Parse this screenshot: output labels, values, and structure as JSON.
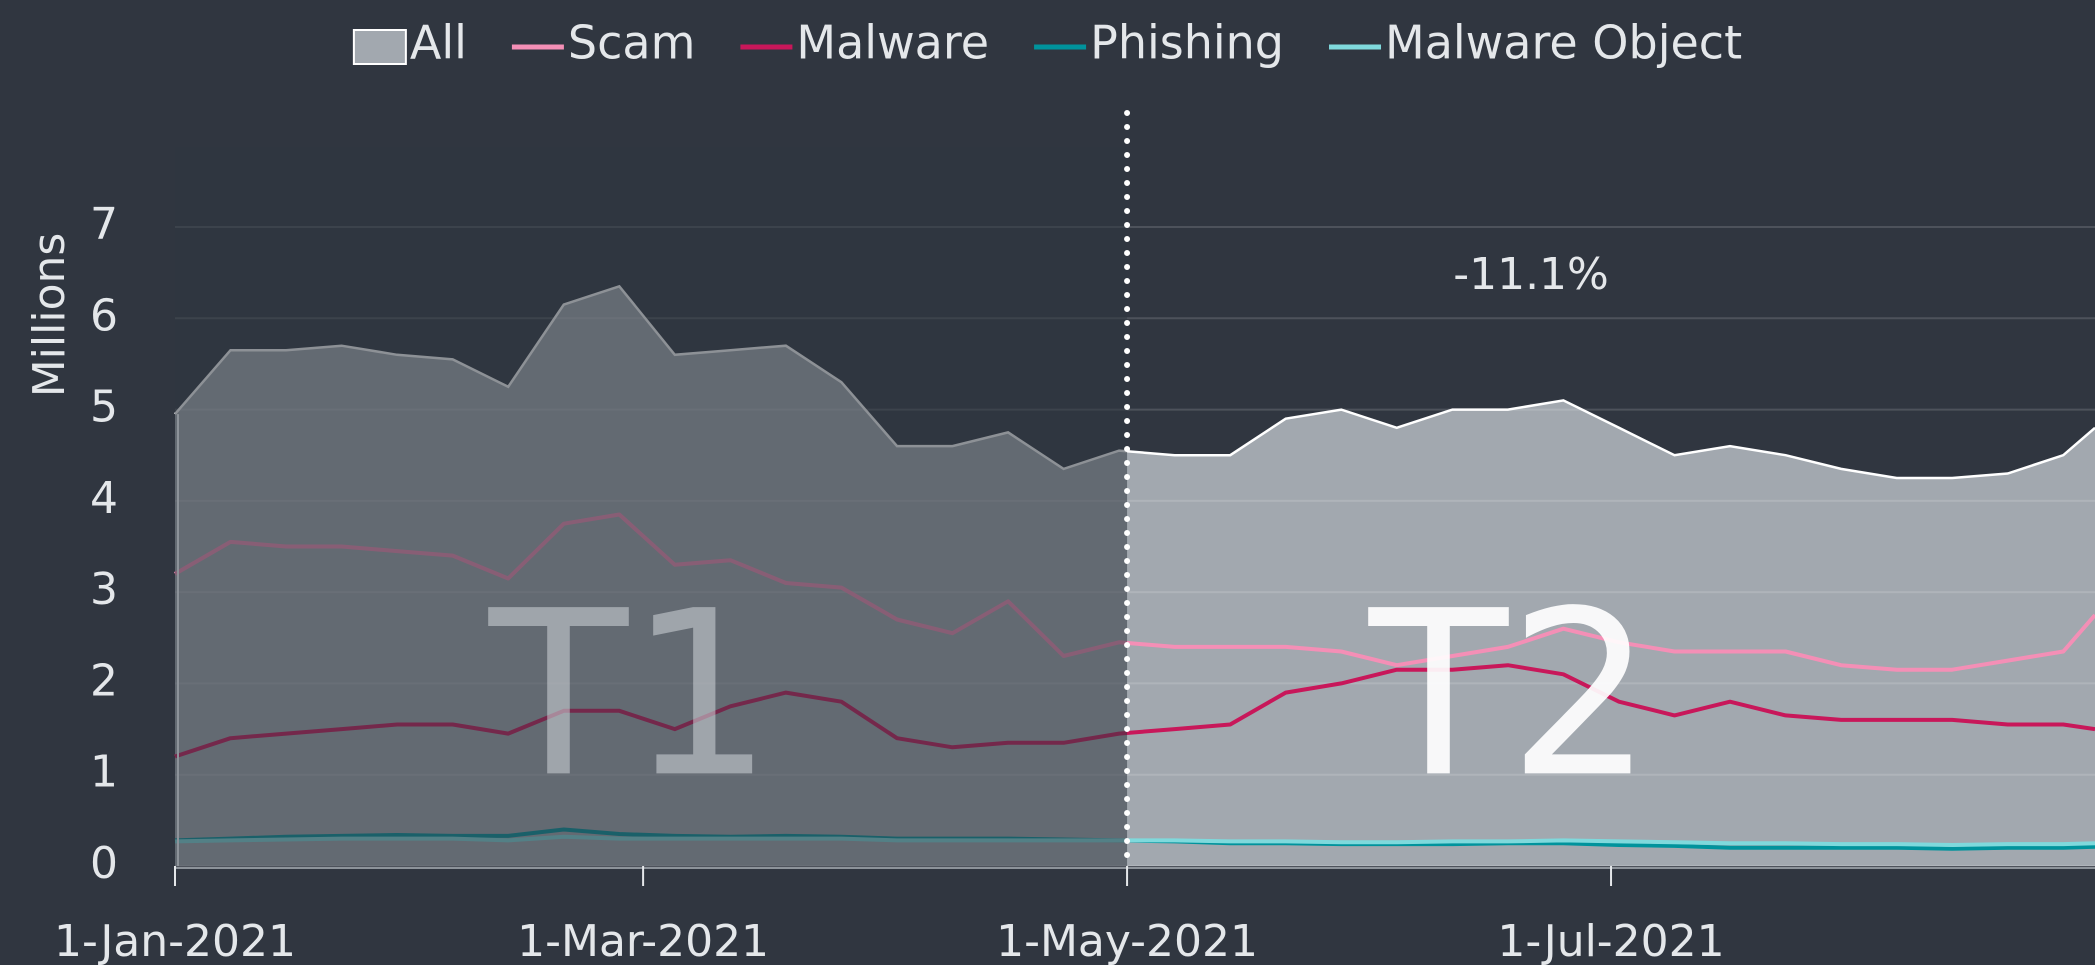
{
  "chart_data": {
    "type": "line",
    "y_label": "Millions",
    "legend": "top",
    "grid": true,
    "x": [
      "2021-01-01",
      "2021-01-08",
      "2021-01-15",
      "2021-01-22",
      "2021-01-29",
      "2021-02-05",
      "2021-02-12",
      "2021-02-19",
      "2021-02-26",
      "2021-03-05",
      "2021-03-12",
      "2021-03-19",
      "2021-03-26",
      "2021-04-02",
      "2021-04-09",
      "2021-04-16",
      "2021-04-23",
      "2021-04-30",
      "2021-05-07",
      "2021-05-14",
      "2021-05-21",
      "2021-05-28",
      "2021-06-04",
      "2021-06-11",
      "2021-06-18",
      "2021-06-25",
      "2021-07-02",
      "2021-07-09",
      "2021-07-16",
      "2021-07-23",
      "2021-07-30",
      "2021-08-06",
      "2021-08-13",
      "2021-08-20",
      "2021-08-27",
      "2021-08-31"
    ],
    "xlim": [
      "2021-01-01",
      "2021-08-31"
    ],
    "xticks": [
      {
        "value": "2021-01-01",
        "label": "1-Jan-2021"
      },
      {
        "value": "2021-03-01",
        "label": "1-Mar-2021"
      },
      {
        "value": "2021-05-01",
        "label": "1-May-2021"
      },
      {
        "value": "2021-07-01",
        "label": "1-Jul-2021"
      }
    ],
    "ylim": [
      0,
      7
    ],
    "yticks": [
      0,
      1,
      2,
      3,
      4,
      5,
      6,
      7
    ],
    "divider": "2021-05-01",
    "periods": [
      {
        "label": "T1"
      },
      {
        "label": "T2",
        "change": "-11.1%"
      }
    ],
    "series": [
      {
        "name": "All",
        "kind": "area",
        "color": "#a2a8af",
        "values": [
          4.95,
          5.65,
          5.65,
          5.7,
          5.6,
          5.55,
          5.25,
          6.15,
          6.35,
          5.6,
          5.65,
          5.7,
          5.3,
          4.6,
          4.6,
          4.75,
          4.35,
          4.55,
          4.5,
          4.5,
          4.9,
          5.0,
          4.8,
          5.0,
          5.0,
          5.1,
          4.8,
          4.5,
          4.6,
          4.5,
          4.35,
          4.25,
          4.25,
          4.3,
          4.5,
          4.8
        ]
      },
      {
        "name": "Scam",
        "color": "#f48fb6",
        "values": [
          3.2,
          3.55,
          3.5,
          3.5,
          3.45,
          3.4,
          3.15,
          3.75,
          3.85,
          3.3,
          3.35,
          3.1,
          3.05,
          2.7,
          2.55,
          2.9,
          2.3,
          2.45,
          2.4,
          2.4,
          2.4,
          2.35,
          2.2,
          2.3,
          2.4,
          2.6,
          2.45,
          2.35,
          2.35,
          2.35,
          2.2,
          2.15,
          2.15,
          2.25,
          2.35,
          2.75
        ]
      },
      {
        "name": "Malware",
        "color": "#c8175a",
        "values": [
          1.2,
          1.4,
          1.45,
          1.5,
          1.55,
          1.55,
          1.45,
          1.7,
          1.7,
          1.5,
          1.75,
          1.9,
          1.8,
          1.4,
          1.3,
          1.35,
          1.35,
          1.45,
          1.5,
          1.55,
          1.9,
          2.0,
          2.15,
          2.15,
          2.2,
          2.1,
          1.8,
          1.65,
          1.8,
          1.65,
          1.6,
          1.6,
          1.6,
          1.55,
          1.55,
          1.5
        ]
      },
      {
        "name": "Phishing",
        "color": "#00939c",
        "values": [
          0.28,
          0.3,
          0.32,
          0.33,
          0.34,
          0.33,
          0.33,
          0.4,
          0.35,
          0.33,
          0.32,
          0.33,
          0.32,
          0.3,
          0.3,
          0.3,
          0.29,
          0.28,
          0.27,
          0.25,
          0.25,
          0.24,
          0.24,
          0.24,
          0.25,
          0.25,
          0.23,
          0.22,
          0.2,
          0.2,
          0.2,
          0.2,
          0.19,
          0.2,
          0.2,
          0.21
        ]
      },
      {
        "name": "Malware Object",
        "color": "#7fd9dc",
        "values": [
          0.27,
          0.28,
          0.29,
          0.3,
          0.3,
          0.3,
          0.28,
          0.32,
          0.3,
          0.3,
          0.3,
          0.3,
          0.3,
          0.28,
          0.28,
          0.28,
          0.28,
          0.28,
          0.28,
          0.27,
          0.27,
          0.26,
          0.26,
          0.27,
          0.27,
          0.28,
          0.27,
          0.26,
          0.25,
          0.25,
          0.24,
          0.24,
          0.23,
          0.24,
          0.24,
          0.25
        ]
      }
    ]
  }
}
